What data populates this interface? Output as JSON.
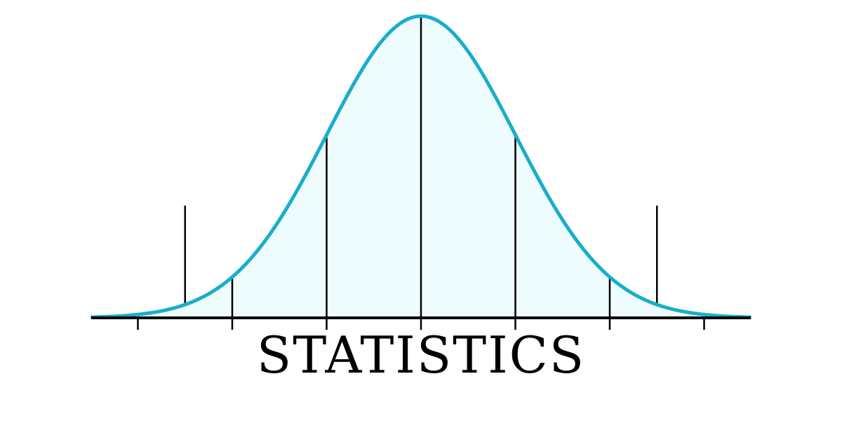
{
  "caption": "STATISTICS",
  "colors": {
    "curve": "#18AECB",
    "fill": "#EEFCFD",
    "ink": "#000000",
    "background": "#FFFFFF"
  },
  "distribution": {
    "type": "normal",
    "mean": 0,
    "sd": 1,
    "x_range": [
      -3.5,
      3.5
    ],
    "sd_marker_lines": [
      -2,
      -1,
      0,
      1,
      2
    ],
    "axis_ticks": [
      -3,
      -2,
      -1,
      0,
      1,
      2,
      3
    ],
    "tall_markers": [
      -2.5,
      2.5
    ]
  }
}
